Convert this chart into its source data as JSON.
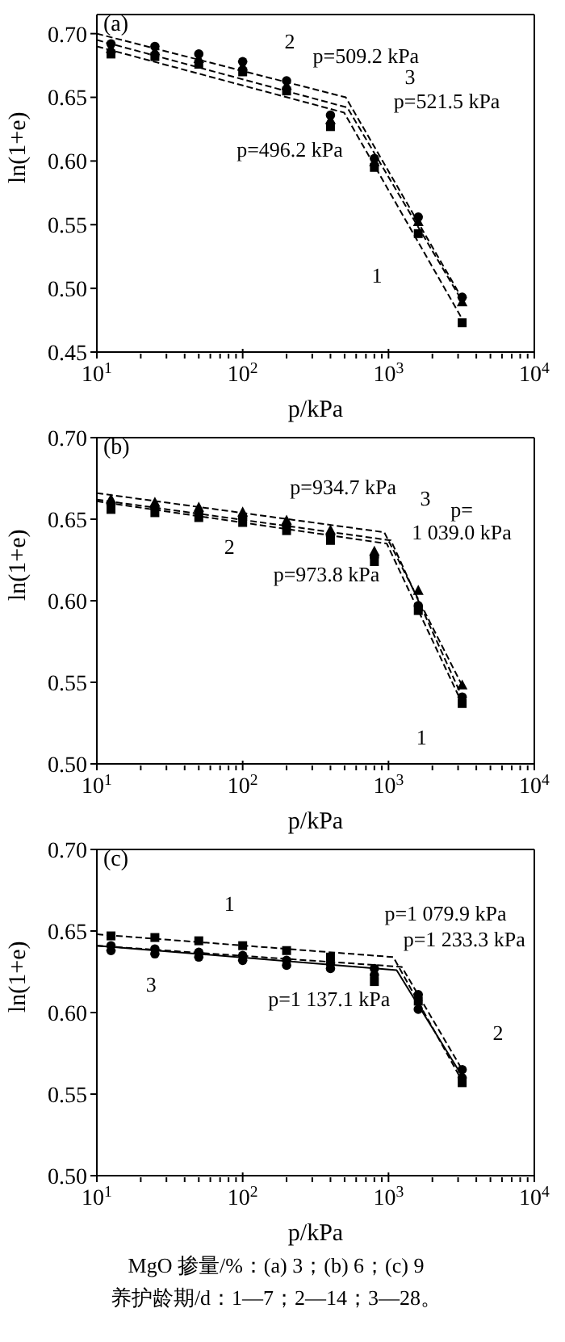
{
  "chart_data": [
    {
      "type": "scatter",
      "title": "(a)",
      "xlabel": "p/kPa",
      "ylabel": "ln(1+e)",
      "log": "x",
      "xlim": [
        10,
        10000
      ],
      "xticks": [
        {
          "value": 10,
          "label": "10$^{1}$"
        },
        {
          "value": 20,
          "label": null
        },
        {
          "value": 30,
          "label": null
        },
        {
          "value": 40,
          "label": null
        },
        {
          "value": 50,
          "label": null
        },
        {
          "value": 60,
          "label": null
        },
        {
          "value": 70,
          "label": null
        },
        {
          "value": 80,
          "label": null
        },
        {
          "value": 90,
          "label": null
        },
        {
          "value": 100,
          "label": "10$^{2}$"
        },
        {
          "value": 200,
          "label": null
        },
        {
          "value": 300,
          "label": null
        },
        {
          "value": 400,
          "label": null
        },
        {
          "value": 500,
          "label": null
        },
        {
          "value": 600,
          "label": null
        },
        {
          "value": 700,
          "label": null
        },
        {
          "value": 800,
          "label": null
        },
        {
          "value": 900,
          "label": null
        },
        {
          "value": 1000,
          "label": "10$^{3}$"
        },
        {
          "value": 2000,
          "label": null
        },
        {
          "value": 3000,
          "label": null
        },
        {
          "value": 4000,
          "label": null
        },
        {
          "value": 5000,
          "label": null
        },
        {
          "value": 6000,
          "label": null
        },
        {
          "value": 7000,
          "label": null
        },
        {
          "value": 8000,
          "label": null
        },
        {
          "value": 9000,
          "label": null
        },
        {
          "value": 10000,
          "label": "10$^{4}$"
        }
      ],
      "ylim": [
        0.45,
        0.715
      ],
      "yticks": [
        {
          "value": 0.45,
          "label": "0.45"
        },
        {
          "value": 0.5,
          "label": "0.50"
        },
        {
          "value": 0.55,
          "label": "0.55"
        },
        {
          "value": 0.6,
          "label": "0.60"
        },
        {
          "value": 0.65,
          "label": "0.65"
        },
        {
          "value": 0.7,
          "label": "0.70"
        }
      ],
      "x": [
        12.5,
        25,
        50,
        100,
        200,
        400,
        800,
        1600,
        3200
      ],
      "series": [
        {
          "type": "scatter",
          "color": "#000000",
          "marker": "square",
          "values": [
            0.684,
            0.682,
            0.676,
            0.67,
            0.655,
            0.627,
            0.595,
            0.543,
            0.473
          ]
        },
        {
          "type": "scatter",
          "color": "#000000",
          "marker": "circle",
          "values": [
            0.692,
            0.69,
            0.684,
            0.678,
            0.663,
            0.636,
            0.602,
            0.556,
            0.493
          ]
        },
        {
          "type": "scatter",
          "color": "#000000",
          "marker": "triangle",
          "values": [
            0.688,
            0.686,
            0.68,
            0.674,
            0.659,
            0.632,
            0.599,
            0.552,
            0.489
          ]
        },
        {
          "type": "line",
          "color": "#000000",
          "marker": "none",
          "line_style": "dashed",
          "x": [
            10,
            496.2,
            3200
          ],
          "values": [
            0.69,
            0.638,
            0.476
          ]
        },
        {
          "type": "line",
          "color": "#000000",
          "marker": "none",
          "line_style": "dashed",
          "x": [
            10,
            509.2,
            3200
          ],
          "values": [
            0.7,
            0.65,
            0.492
          ]
        },
        {
          "type": "line",
          "color": "#000000",
          "marker": "none",
          "line_style": "dashed",
          "x": [
            10,
            521.5,
            3200
          ],
          "values": [
            0.695,
            0.642,
            0.49
          ]
        }
      ],
      "annotations": [
        "p=509.2 kPa",
        "p=521.5 kPa",
        "p=496.2 kPa",
        "1",
        "2",
        "3"
      ]
    },
    {
      "type": "scatter",
      "title": "(b)",
      "xlabel": "p/kPa",
      "ylabel": "ln(1+e)",
      "log": "x",
      "xlim": [
        10,
        10000
      ],
      "xticks": [
        {
          "value": 10,
          "label": "10$^{1}$"
        },
        {
          "value": 20,
          "label": null
        },
        {
          "value": 30,
          "label": null
        },
        {
          "value": 40,
          "label": null
        },
        {
          "value": 50,
          "label": null
        },
        {
          "value": 60,
          "label": null
        },
        {
          "value": 70,
          "label": null
        },
        {
          "value": 80,
          "label": null
        },
        {
          "value": 90,
          "label": null
        },
        {
          "value": 100,
          "label": "10$^{2}$"
        },
        {
          "value": 200,
          "label": null
        },
        {
          "value": 300,
          "label": null
        },
        {
          "value": 400,
          "label": null
        },
        {
          "value": 500,
          "label": null
        },
        {
          "value": 600,
          "label": null
        },
        {
          "value": 700,
          "label": null
        },
        {
          "value": 800,
          "label": null
        },
        {
          "value": 900,
          "label": null
        },
        {
          "value": 1000,
          "label": "10$^{3}$"
        },
        {
          "value": 2000,
          "label": null
        },
        {
          "value": 3000,
          "label": null
        },
        {
          "value": 4000,
          "label": null
        },
        {
          "value": 5000,
          "label": null
        },
        {
          "value": 6000,
          "label": null
        },
        {
          "value": 7000,
          "label": null
        },
        {
          "value": 8000,
          "label": null
        },
        {
          "value": 9000,
          "label": null
        },
        {
          "value": 10000,
          "label": "10$^{4}$"
        }
      ],
      "ylim": [
        0.5,
        0.7
      ],
      "yticks": [
        {
          "value": 0.5,
          "label": "0.50"
        },
        {
          "value": 0.55,
          "label": "0.55"
        },
        {
          "value": 0.6,
          "label": "0.60"
        },
        {
          "value": 0.65,
          "label": "0.65"
        },
        {
          "value": 0.7,
          "label": "0.70"
        }
      ],
      "x": [
        12.5,
        25,
        50,
        100,
        200,
        400,
        800,
        1600,
        3200
      ],
      "series": [
        {
          "type": "scatter",
          "color": "#000000",
          "marker": "square",
          "values": [
            0.656,
            0.654,
            0.651,
            0.648,
            0.643,
            0.637,
            0.624,
            0.594,
            0.537
          ]
        },
        {
          "type": "scatter",
          "color": "#000000",
          "marker": "circle",
          "values": [
            0.659,
            0.657,
            0.654,
            0.651,
            0.646,
            0.64,
            0.627,
            0.597,
            0.541
          ]
        },
        {
          "type": "scatter",
          "color": "#000000",
          "marker": "triangle",
          "values": [
            0.662,
            0.66,
            0.657,
            0.654,
            0.649,
            0.643,
            0.63,
            0.606,
            0.548
          ]
        },
        {
          "type": "line",
          "color": "#000000",
          "marker": "none",
          "line_style": "dashed",
          "x": [
            10,
            973.8,
            3200
          ],
          "values": [
            0.661,
            0.635,
            0.537
          ]
        },
        {
          "type": "line",
          "color": "#000000",
          "marker": "none",
          "line_style": "dashed",
          "x": [
            10,
            1039,
            3200
          ],
          "values": [
            0.662,
            0.637,
            0.541
          ]
        },
        {
          "type": "line",
          "color": "#000000",
          "marker": "none",
          "line_style": "dashed",
          "x": [
            10,
            934.7,
            3200
          ],
          "values": [
            0.666,
            0.642,
            0.548
          ]
        }
      ],
      "annotations": [
        "p=934.7 kPa",
        "p=\n1 039.0 kPa",
        "p=973.8 kPa",
        "1",
        "2",
        "3"
      ]
    },
    {
      "type": "scatter",
      "title": "(c)",
      "xlabel": "p/kPa",
      "ylabel": "ln(1+e)",
      "log": "x",
      "xlim": [
        10,
        10000
      ],
      "xticks": [
        {
          "value": 10,
          "label": "10$^{1}$"
        },
        {
          "value": 20,
          "label": null
        },
        {
          "value": 30,
          "label": null
        },
        {
          "value": 40,
          "label": null
        },
        {
          "value": 50,
          "label": null
        },
        {
          "value": 60,
          "label": null
        },
        {
          "value": 70,
          "label": null
        },
        {
          "value": 80,
          "label": null
        },
        {
          "value": 90,
          "label": null
        },
        {
          "value": 100,
          "label": "10$^{2}$"
        },
        {
          "value": 200,
          "label": null
        },
        {
          "value": 300,
          "label": null
        },
        {
          "value": 400,
          "label": null
        },
        {
          "value": 500,
          "label": null
        },
        {
          "value": 600,
          "label": null
        },
        {
          "value": 700,
          "label": null
        },
        {
          "value": 800,
          "label": null
        },
        {
          "value": 900,
          "label": null
        },
        {
          "value": 1000,
          "label": "10$^{3}$"
        },
        {
          "value": 2000,
          "label": null
        },
        {
          "value": 3000,
          "label": null
        },
        {
          "value": 4000,
          "label": null
        },
        {
          "value": 5000,
          "label": null
        },
        {
          "value": 6000,
          "label": null
        },
        {
          "value": 7000,
          "label": null
        },
        {
          "value": 8000,
          "label": null
        },
        {
          "value": 9000,
          "label": null
        },
        {
          "value": 10000,
          "label": "10$^{4}$"
        }
      ],
      "ylim": [
        0.5,
        0.7
      ],
      "yticks": [
        {
          "value": 0.5,
          "label": "0.50"
        },
        {
          "value": 0.55,
          "label": "0.55"
        },
        {
          "value": 0.6,
          "label": "0.60"
        },
        {
          "value": 0.65,
          "label": "0.65"
        },
        {
          "value": 0.7,
          "label": "0.70"
        }
      ],
      "x": [
        12.5,
        25,
        50,
        100,
        200,
        400,
        800,
        1600,
        3200
      ],
      "series": [
        {
          "type": "scatter",
          "color": "#000000",
          "marker": "square",
          "values": [
            0.647,
            0.646,
            0.644,
            0.641,
            0.638,
            0.634,
            0.619,
            0.607,
            0.557
          ]
        },
        {
          "type": "scatter",
          "color": "#000000",
          "marker": "circle",
          "values": [
            0.641,
            0.639,
            0.637,
            0.635,
            0.632,
            0.63,
            0.627,
            0.611,
            0.565
          ]
        },
        {
          "type": "scatter",
          "color": "#000000",
          "marker": "circle",
          "values": [
            0.638,
            0.636,
            0.634,
            0.632,
            0.629,
            0.627,
            0.623,
            0.602,
            0.56
          ]
        },
        {
          "type": "line",
          "color": "#000000",
          "marker": "none",
          "line_style": "dashed",
          "x": [
            10,
            1079.9,
            3200
          ],
          "values": [
            0.648,
            0.634,
            0.558
          ]
        },
        {
          "type": "line",
          "color": "#000000",
          "marker": "none",
          "line_style": "dashed",
          "x": [
            10,
            1233.3,
            3200
          ],
          "values": [
            0.641,
            0.628,
            0.565
          ]
        },
        {
          "type": "line",
          "color": "#000000",
          "marker": "none",
          "line_style": "solid",
          "x": [
            10,
            1137.1,
            3200
          ],
          "values": [
            0.641,
            0.626,
            0.561
          ]
        }
      ],
      "annotations": [
        "p=1 079.9 kPa",
        "p=1 233.3 kPa",
        "p=1 137.1 kPa",
        "1",
        "2",
        "3",
        "MgO 掺量/%：(a) 3；(b) 6；(c) 9",
        "养护龄期/d：1—7；2—14；3—28。"
      ]
    }
  ]
}
